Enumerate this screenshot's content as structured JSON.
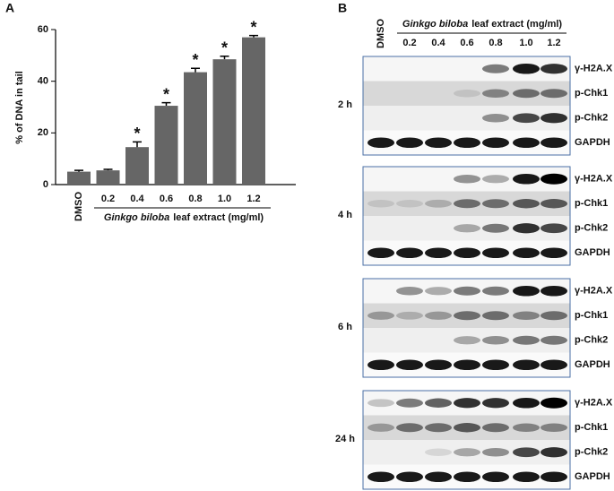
{
  "panel_labels": [
    "A",
    "B"
  ],
  "chart_data": {
    "type": "bar",
    "ylabel": "% of DNA in tail",
    "xlabel": [
      "Ginkgo biloba",
      "leaf extract (mg/ml)"
    ],
    "categories": [
      "DMSO",
      "0.2",
      "0.4",
      "0.6",
      "0.8",
      "1.0",
      "1.2"
    ],
    "values": [
      5,
      5.5,
      14.5,
      30.5,
      43.5,
      48.5,
      57
    ],
    "errors": [
      0.5,
      0.4,
      2,
      1.2,
      1.5,
      1.2,
      0.7
    ],
    "significance": [
      null,
      null,
      "*",
      "*",
      "*",
      "*",
      "*"
    ],
    "color": "#666666",
    "ylim": [
      0,
      60
    ],
    "yticks": [
      0,
      20,
      40,
      60
    ]
  },
  "blot": {
    "dmso": "DMSO",
    "header": [
      "Ginkgo biloba",
      "leaf extract (mg/ml)"
    ],
    "lanes": [
      "0.2",
      "0.4",
      "0.6",
      "0.8",
      "1.0",
      "1.2"
    ],
    "proteins": [
      "γ-H2A.X",
      "p-Chk1",
      "p-Chk2",
      "GAPDH"
    ],
    "timepoints": [
      "2 h",
      "4 h",
      "6 h",
      "24 h"
    ]
  }
}
